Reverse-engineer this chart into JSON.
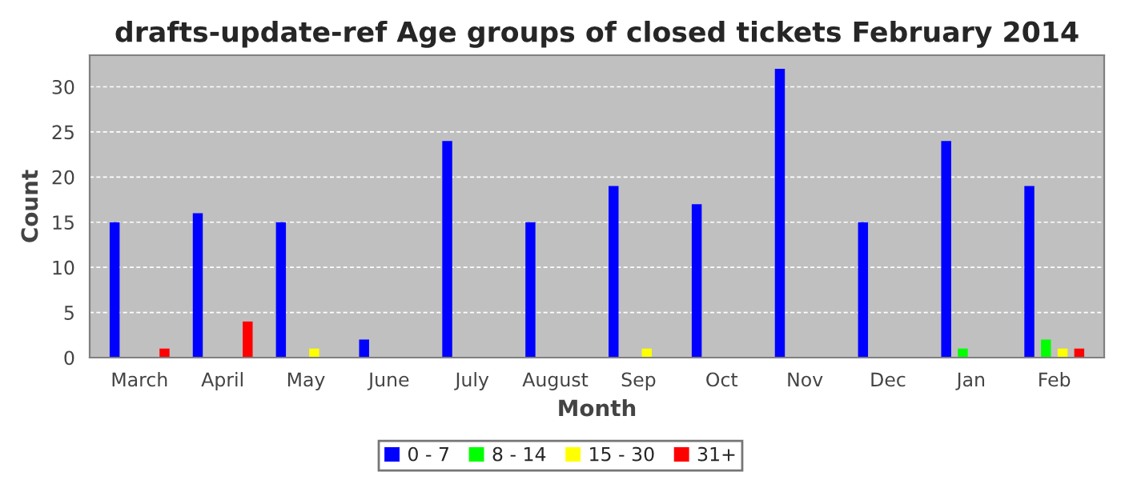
{
  "chart_data": {
    "type": "bar",
    "title": "drafts-update-ref Age groups of closed tickets February 2014",
    "xlabel": "Month",
    "ylabel": "Count",
    "categories": [
      "March",
      "April",
      "May",
      "June",
      "July",
      "August",
      "Sep",
      "Oct",
      "Nov",
      "Dec",
      "Jan",
      "Feb"
    ],
    "series": [
      {
        "name": "0 - 7",
        "color": "#0000ff",
        "values": [
          15,
          16,
          15,
          2,
          24,
          15,
          19,
          17,
          32,
          15,
          24,
          19
        ]
      },
      {
        "name": "8 - 14",
        "color": "#00ff00",
        "values": [
          0,
          0,
          0,
          0,
          0,
          0,
          0,
          0,
          0,
          0,
          1,
          2
        ]
      },
      {
        "name": "15 - 30",
        "color": "#ffff00",
        "values": [
          0,
          0,
          1,
          0,
          0,
          0,
          1,
          0,
          0,
          0,
          0,
          1
        ]
      },
      {
        "name": "31+",
        "color": "#ff0000",
        "values": [
          1,
          4,
          0,
          0,
          0,
          0,
          0,
          0,
          0,
          0,
          0,
          1
        ]
      }
    ],
    "ylim": [
      0,
      33.5
    ],
    "yticks": [
      0,
      5,
      10,
      15,
      20,
      25,
      30
    ],
    "grid": "y",
    "legend": "bottom"
  }
}
